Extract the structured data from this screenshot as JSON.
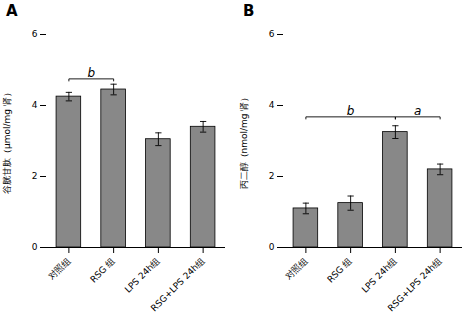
{
  "chart_data": [
    {
      "type": "bar",
      "title": "A",
      "categories": [
        "对照组",
        "RSG 组",
        "LPS 24h组",
        "RSG+LPS 24h组"
      ],
      "values": [
        4.25,
        4.45,
        3.05,
        3.4
      ],
      "errors": [
        0.12,
        0.15,
        0.18,
        0.15
      ],
      "ylabel": "谷胱甘肽（μmol/mg 肾）",
      "ylim": [
        0,
        6
      ],
      "yticks": [
        0,
        2,
        4,
        6
      ],
      "color": "#888888",
      "grid": false,
      "annotations": [
        {
          "from": "对照组",
          "to": "RSG 组",
          "y": 4.75,
          "label": "b"
        }
      ]
    },
    {
      "type": "bar",
      "title": "B",
      "categories": [
        "对照组",
        "RSG 组",
        "LPS 24h组",
        "RSG+LPS 24h组"
      ],
      "values": [
        1.1,
        1.25,
        3.25,
        2.2
      ],
      "errors": [
        0.15,
        0.2,
        0.18,
        0.15
      ],
      "ylabel": "丙二醇（nmol/mg 肾）",
      "ylim": [
        0,
        6
      ],
      "yticks": [
        0,
        2,
        4,
        6
      ],
      "color": "#888888",
      "grid": false,
      "annotations": [
        {
          "from": "对照组",
          "to": "LPS 24h组",
          "y": 3.68,
          "label": "b"
        },
        {
          "from": "LPS 24h组",
          "to": "RSG+LPS 24h组",
          "y": 3.68,
          "label": "a"
        }
      ]
    }
  ]
}
